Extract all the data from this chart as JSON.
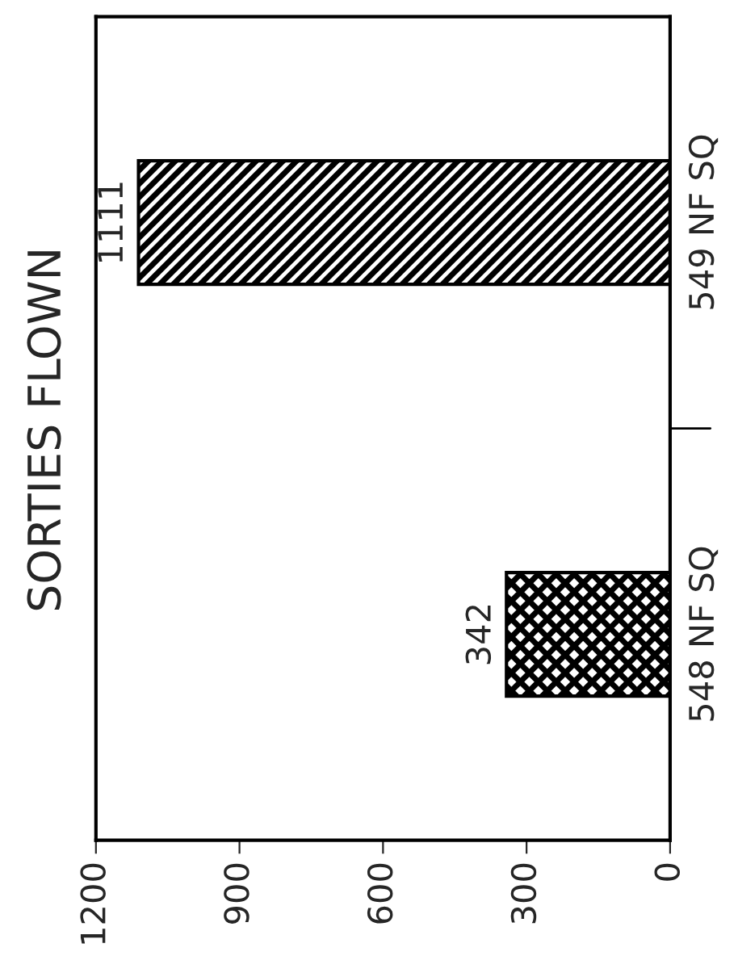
{
  "chart_data": {
    "type": "bar",
    "orientation": "horizontal",
    "title": "SORTIES FLOWN",
    "categories": [
      "549 NF SQ",
      "548 NF SQ"
    ],
    "series": [
      {
        "color": "#000000",
        "values": [
          1111,
          342
        ]
      }
    ],
    "xlim": [
      1200,
      0
    ],
    "xticks": [
      1200,
      900,
      600,
      300,
      0
    ],
    "data_labels": true,
    "grid": false,
    "legend": false
  }
}
